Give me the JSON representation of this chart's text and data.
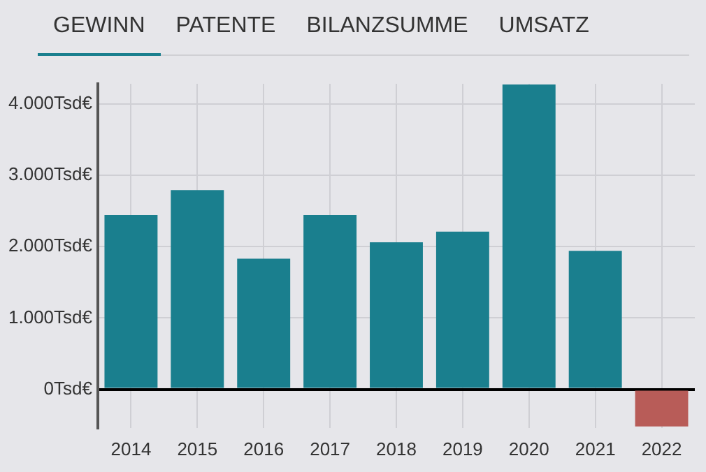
{
  "chart_data": {
    "type": "bar",
    "annotations": [
      "GEWINN",
      "PATENTE",
      "BILANZSUMME",
      "UMSATZ"
    ],
    "categories": [
      "2014",
      "2015",
      "2016",
      "2017",
      "2018",
      "2019",
      "2020",
      "2021",
      "2022"
    ],
    "values": [
      2440,
      2790,
      1830,
      2440,
      2060,
      2210,
      4270,
      1940,
      -520
    ],
    "colors": [
      "#1a7f8e",
      "#1a7f8e",
      "#1a7f8e",
      "#1a7f8e",
      "#1a7f8e",
      "#1a7f8e",
      "#1a7f8e",
      "#1a7f8e",
      "#b85c58"
    ],
    "ylim": [
      -540,
      4280
    ],
    "yticks": [
      {
        "value": 0,
        "label": "0Tsd€"
      },
      {
        "value": 1000,
        "label": "1.000Tsd€"
      },
      {
        "value": 2000,
        "label": "2.000Tsd€"
      },
      {
        "value": 3000,
        "label": "3.000Tsd€"
      },
      {
        "value": 4000,
        "label": "4.000Tsd€"
      }
    ],
    "grid": true,
    "legend": false
  }
}
